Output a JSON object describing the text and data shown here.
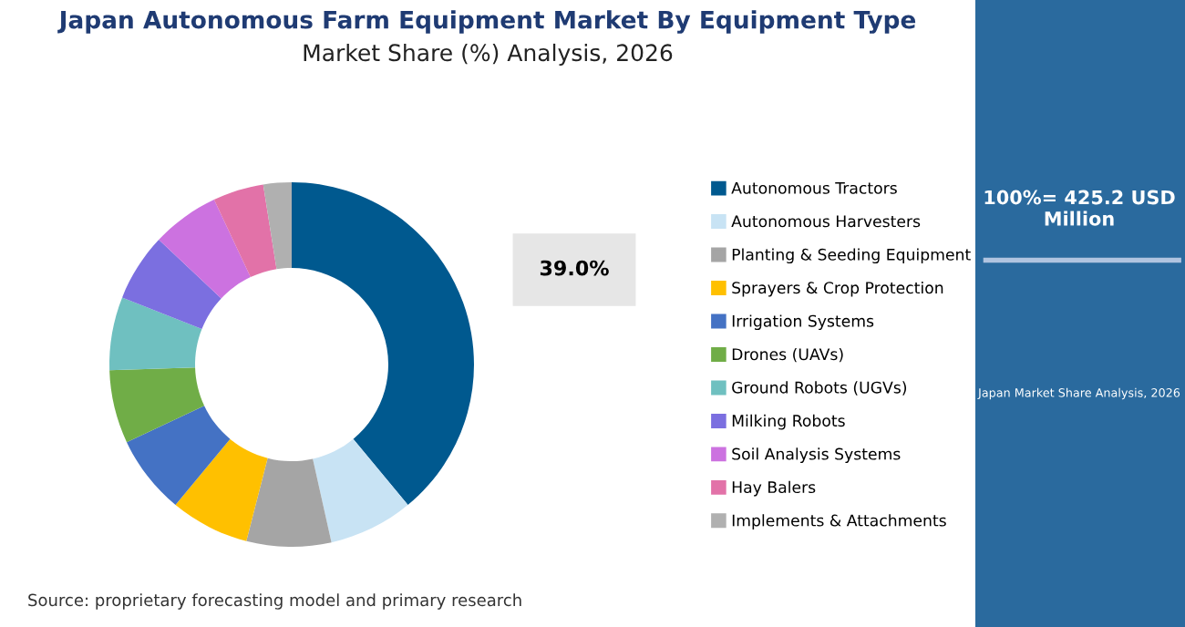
{
  "chart_data": {
    "type": "donut",
    "title": "Japan Autonomous Farm Equipment Market By Equipment Type",
    "subtitle": "Market Share (%) Analysis, 2026",
    "categories": [
      "Autonomous Tractors",
      "Autonomous Harvesters",
      "Planting & Seeding Equipment",
      "Sprayers & Crop Protection",
      "Irrigation Systems",
      "Drones (UAVs)",
      "Ground Robots (UGVs)",
      "Milking Robots",
      "Soil Analysis Systems",
      "Hay Balers",
      "Implements & Attachments"
    ],
    "values": [
      39.0,
      7.5,
      7.5,
      7,
      7,
      6.5,
      6.5,
      6,
      6,
      4.5,
      2.5
    ],
    "value_labels": [
      "39.0%",
      null,
      null,
      null,
      null,
      null,
      null,
      null,
      null,
      null,
      null
    ],
    "colors": [
      "#00598f",
      "#c8e3f4",
      "#a5a5a5",
      "#ffc000",
      "#4472c4",
      "#70ad47",
      "#6fc0c0",
      "#7b6fe0",
      "#cc72e0",
      "#e272a8",
      "#b0b0b0"
    ],
    "legend": "right",
    "annotations": [
      "100%= 425.2 USD Million",
      "Japan Market Share Analysis, 2026",
      "Source: proprietary forecasting model and primary research"
    ]
  }
}
